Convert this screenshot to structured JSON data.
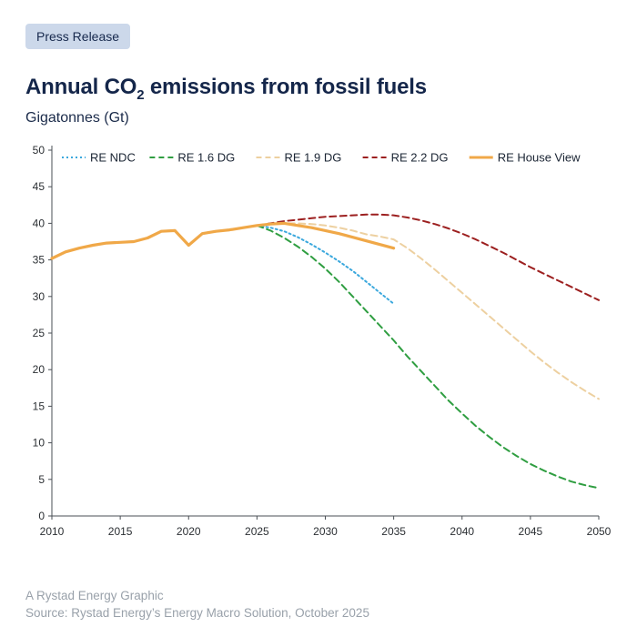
{
  "header": {
    "badge": "Press Release",
    "title_prefix": "Annual CO",
    "title_sub": "2",
    "title_suffix": " emissions from fossil fuels",
    "subtitle": "Gigatonnes (Gt)"
  },
  "chart_data": {
    "type": "line",
    "title": "Annual CO2 emissions from fossil fuels",
    "ylabel": "Gigatonnes (Gt)",
    "xlabel": "",
    "xlim": [
      2010,
      2050
    ],
    "ylim": [
      0,
      50
    ],
    "x_ticks": [
      2010,
      2015,
      2020,
      2025,
      2030,
      2035,
      2040,
      2045,
      2050
    ],
    "y_ticks": [
      0,
      5,
      10,
      15,
      20,
      25,
      30,
      35,
      40,
      45,
      50
    ],
    "grid": false,
    "legend_position": "top",
    "series": [
      {
        "name": "RE NDC",
        "color": "#3ba8dd",
        "style": "dotted",
        "width": 2,
        "points": [
          [
            2025,
            39.7
          ],
          [
            2026,
            39.4
          ],
          [
            2027,
            38.9
          ],
          [
            2028,
            38.1
          ],
          [
            2029,
            37.1
          ],
          [
            2030,
            36.0
          ],
          [
            2031,
            34.8
          ],
          [
            2032,
            33.5
          ],
          [
            2033,
            32.0
          ],
          [
            2034,
            30.5
          ],
          [
            2035,
            29.0
          ]
        ]
      },
      {
        "name": "RE 1.6 DG",
        "color": "#2f9e41",
        "style": "dashed",
        "width": 2,
        "points": [
          [
            2025,
            39.7
          ],
          [
            2026,
            39.0
          ],
          [
            2027,
            38.0
          ],
          [
            2028,
            36.8
          ],
          [
            2029,
            35.4
          ],
          [
            2030,
            33.8
          ],
          [
            2031,
            32.0
          ],
          [
            2032,
            30.0
          ],
          [
            2033,
            28.0
          ],
          [
            2034,
            26.0
          ],
          [
            2035,
            24.0
          ],
          [
            2036,
            21.8
          ],
          [
            2037,
            19.8
          ],
          [
            2038,
            17.8
          ],
          [
            2039,
            15.8
          ],
          [
            2040,
            14.0
          ],
          [
            2041,
            12.3
          ],
          [
            2042,
            10.8
          ],
          [
            2043,
            9.4
          ],
          [
            2044,
            8.2
          ],
          [
            2045,
            7.1
          ],
          [
            2046,
            6.2
          ],
          [
            2047,
            5.4
          ],
          [
            2048,
            4.7
          ],
          [
            2049,
            4.2
          ],
          [
            2050,
            3.8
          ]
        ]
      },
      {
        "name": "RE 1.9 DG",
        "color": "#edd0a0",
        "style": "dashed",
        "width": 2,
        "points": [
          [
            2025,
            39.7
          ],
          [
            2026,
            39.9
          ],
          [
            2027,
            40.0
          ],
          [
            2028,
            40.0
          ],
          [
            2029,
            39.9
          ],
          [
            2030,
            39.7
          ],
          [
            2031,
            39.4
          ],
          [
            2032,
            39.0
          ],
          [
            2033,
            38.5
          ],
          [
            2034,
            38.2
          ],
          [
            2035,
            37.8
          ],
          [
            2036,
            36.6
          ],
          [
            2037,
            35.2
          ],
          [
            2038,
            33.7
          ],
          [
            2039,
            32.1
          ],
          [
            2040,
            30.5
          ],
          [
            2041,
            28.9
          ],
          [
            2042,
            27.3
          ],
          [
            2043,
            25.7
          ],
          [
            2044,
            24.1
          ],
          [
            2045,
            22.5
          ],
          [
            2046,
            21.0
          ],
          [
            2047,
            19.6
          ],
          [
            2048,
            18.3
          ],
          [
            2049,
            17.1
          ],
          [
            2050,
            16.0
          ]
        ]
      },
      {
        "name": "RE 2.2 DG",
        "color": "#9c1f1f",
        "style": "dashed",
        "width": 2,
        "points": [
          [
            2025,
            39.7
          ],
          [
            2026,
            40.0
          ],
          [
            2027,
            40.3
          ],
          [
            2028,
            40.5
          ],
          [
            2029,
            40.7
          ],
          [
            2030,
            40.9
          ],
          [
            2031,
            41.0
          ],
          [
            2032,
            41.1
          ],
          [
            2033,
            41.2
          ],
          [
            2034,
            41.2
          ],
          [
            2035,
            41.1
          ],
          [
            2036,
            40.8
          ],
          [
            2037,
            40.4
          ],
          [
            2038,
            39.9
          ],
          [
            2039,
            39.3
          ],
          [
            2040,
            38.6
          ],
          [
            2041,
            37.8
          ],
          [
            2042,
            36.9
          ],
          [
            2043,
            36.0
          ],
          [
            2044,
            35.0
          ],
          [
            2045,
            34.0
          ],
          [
            2046,
            33.1
          ],
          [
            2047,
            32.2
          ],
          [
            2048,
            31.3
          ],
          [
            2049,
            30.4
          ],
          [
            2050,
            29.5
          ]
        ]
      },
      {
        "name": "RE House View",
        "color": "#f0a848",
        "style": "solid",
        "width": 3.2,
        "points": [
          [
            2010,
            35.2
          ],
          [
            2011,
            36.1
          ],
          [
            2012,
            36.6
          ],
          [
            2013,
            37.0
          ],
          [
            2014,
            37.3
          ],
          [
            2015,
            37.4
          ],
          [
            2016,
            37.5
          ],
          [
            2017,
            38.0
          ],
          [
            2018,
            38.9
          ],
          [
            2019,
            39.0
          ],
          [
            2020,
            37.0
          ],
          [
            2021,
            38.6
          ],
          [
            2022,
            38.9
          ],
          [
            2023,
            39.1
          ],
          [
            2024,
            39.4
          ],
          [
            2025,
            39.7
          ],
          [
            2026,
            39.9
          ],
          [
            2027,
            40.0
          ],
          [
            2028,
            39.7
          ],
          [
            2029,
            39.4
          ],
          [
            2030,
            39.0
          ],
          [
            2031,
            38.6
          ],
          [
            2032,
            38.1
          ],
          [
            2033,
            37.6
          ],
          [
            2034,
            37.1
          ],
          [
            2035,
            36.6
          ]
        ]
      }
    ]
  },
  "footer": {
    "line1": "A Rystad Energy Graphic",
    "line2": "Source: Rystad Energy’s Energy Macro Solution, October 2025"
  }
}
